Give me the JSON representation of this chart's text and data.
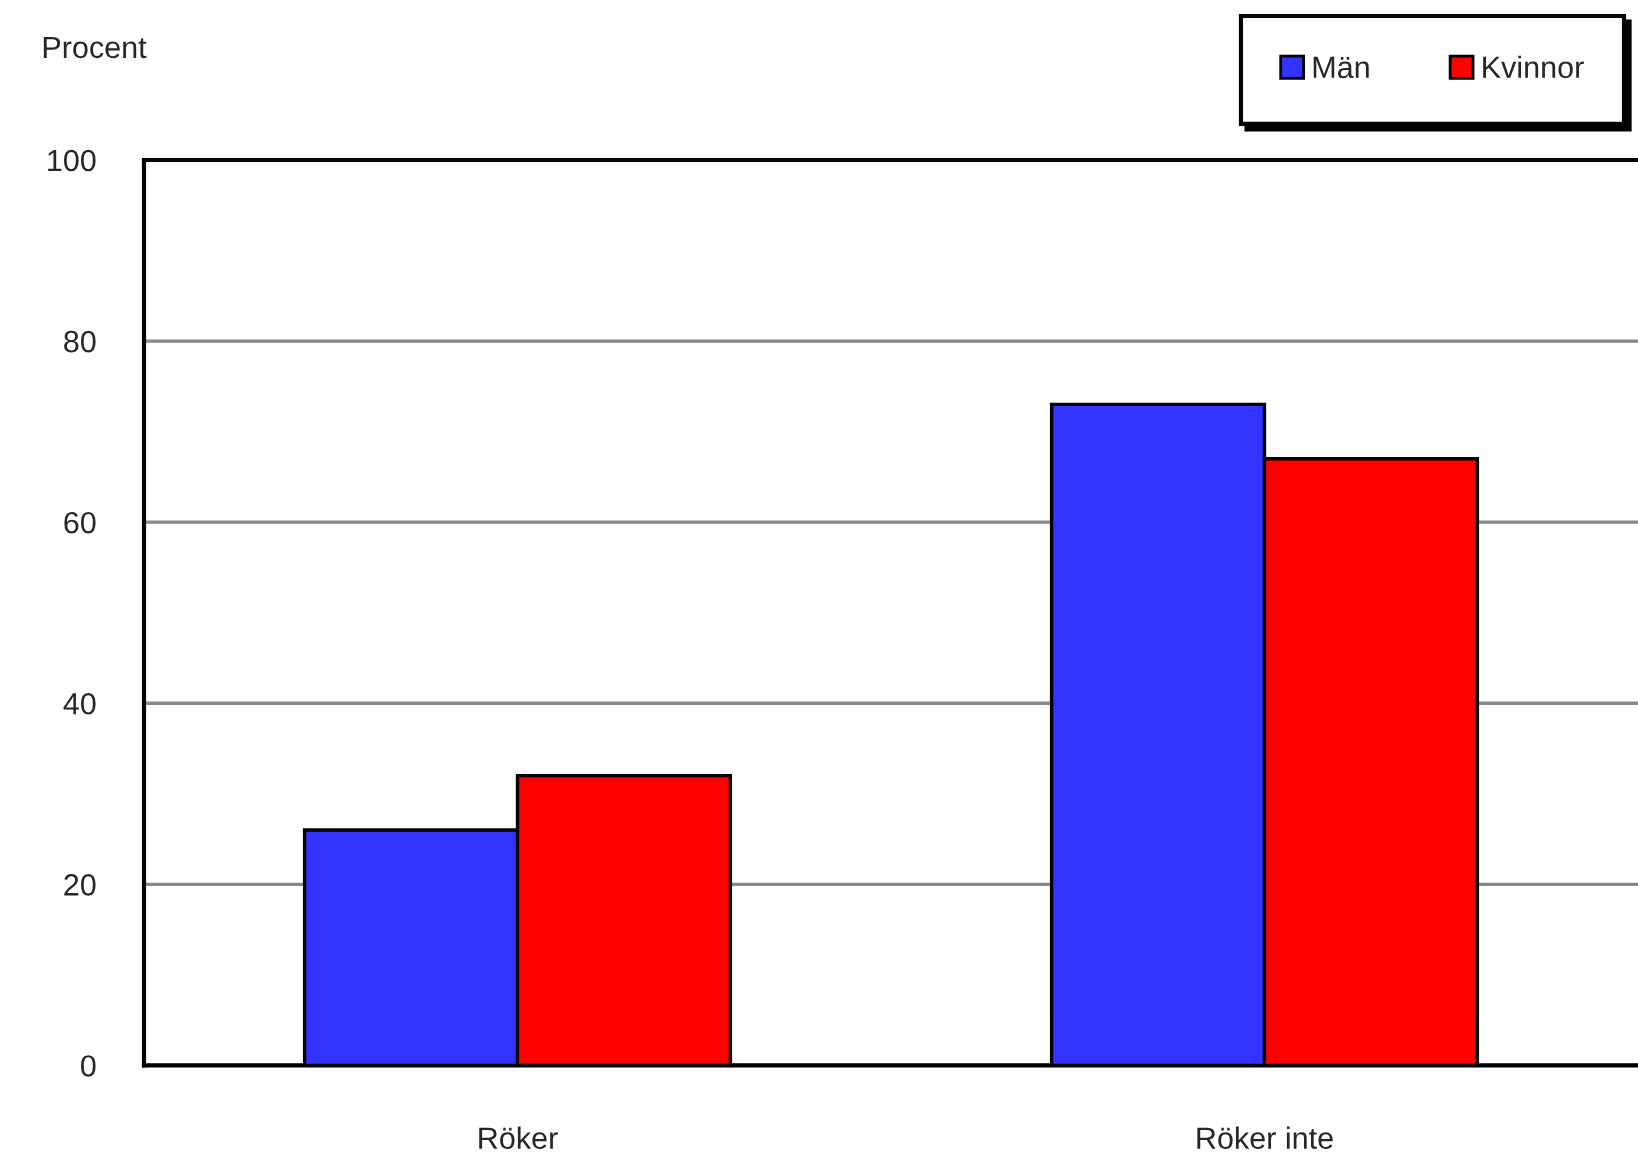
{
  "chart_data": {
    "type": "bar",
    "ylabel": "Procent",
    "categories": [
      "Röker",
      "Röker inte"
    ],
    "series": [
      {
        "name": "Män",
        "color": "#3333ff",
        "values": [
          26,
          73
        ]
      },
      {
        "name": "Kvinnor",
        "color": "#ff0000",
        "values": [
          32,
          67
        ]
      }
    ],
    "ylim": [
      0,
      100
    ],
    "yticks": [
      0,
      20,
      40,
      60,
      80,
      100
    ],
    "grid": "y",
    "legend": "top right"
  }
}
